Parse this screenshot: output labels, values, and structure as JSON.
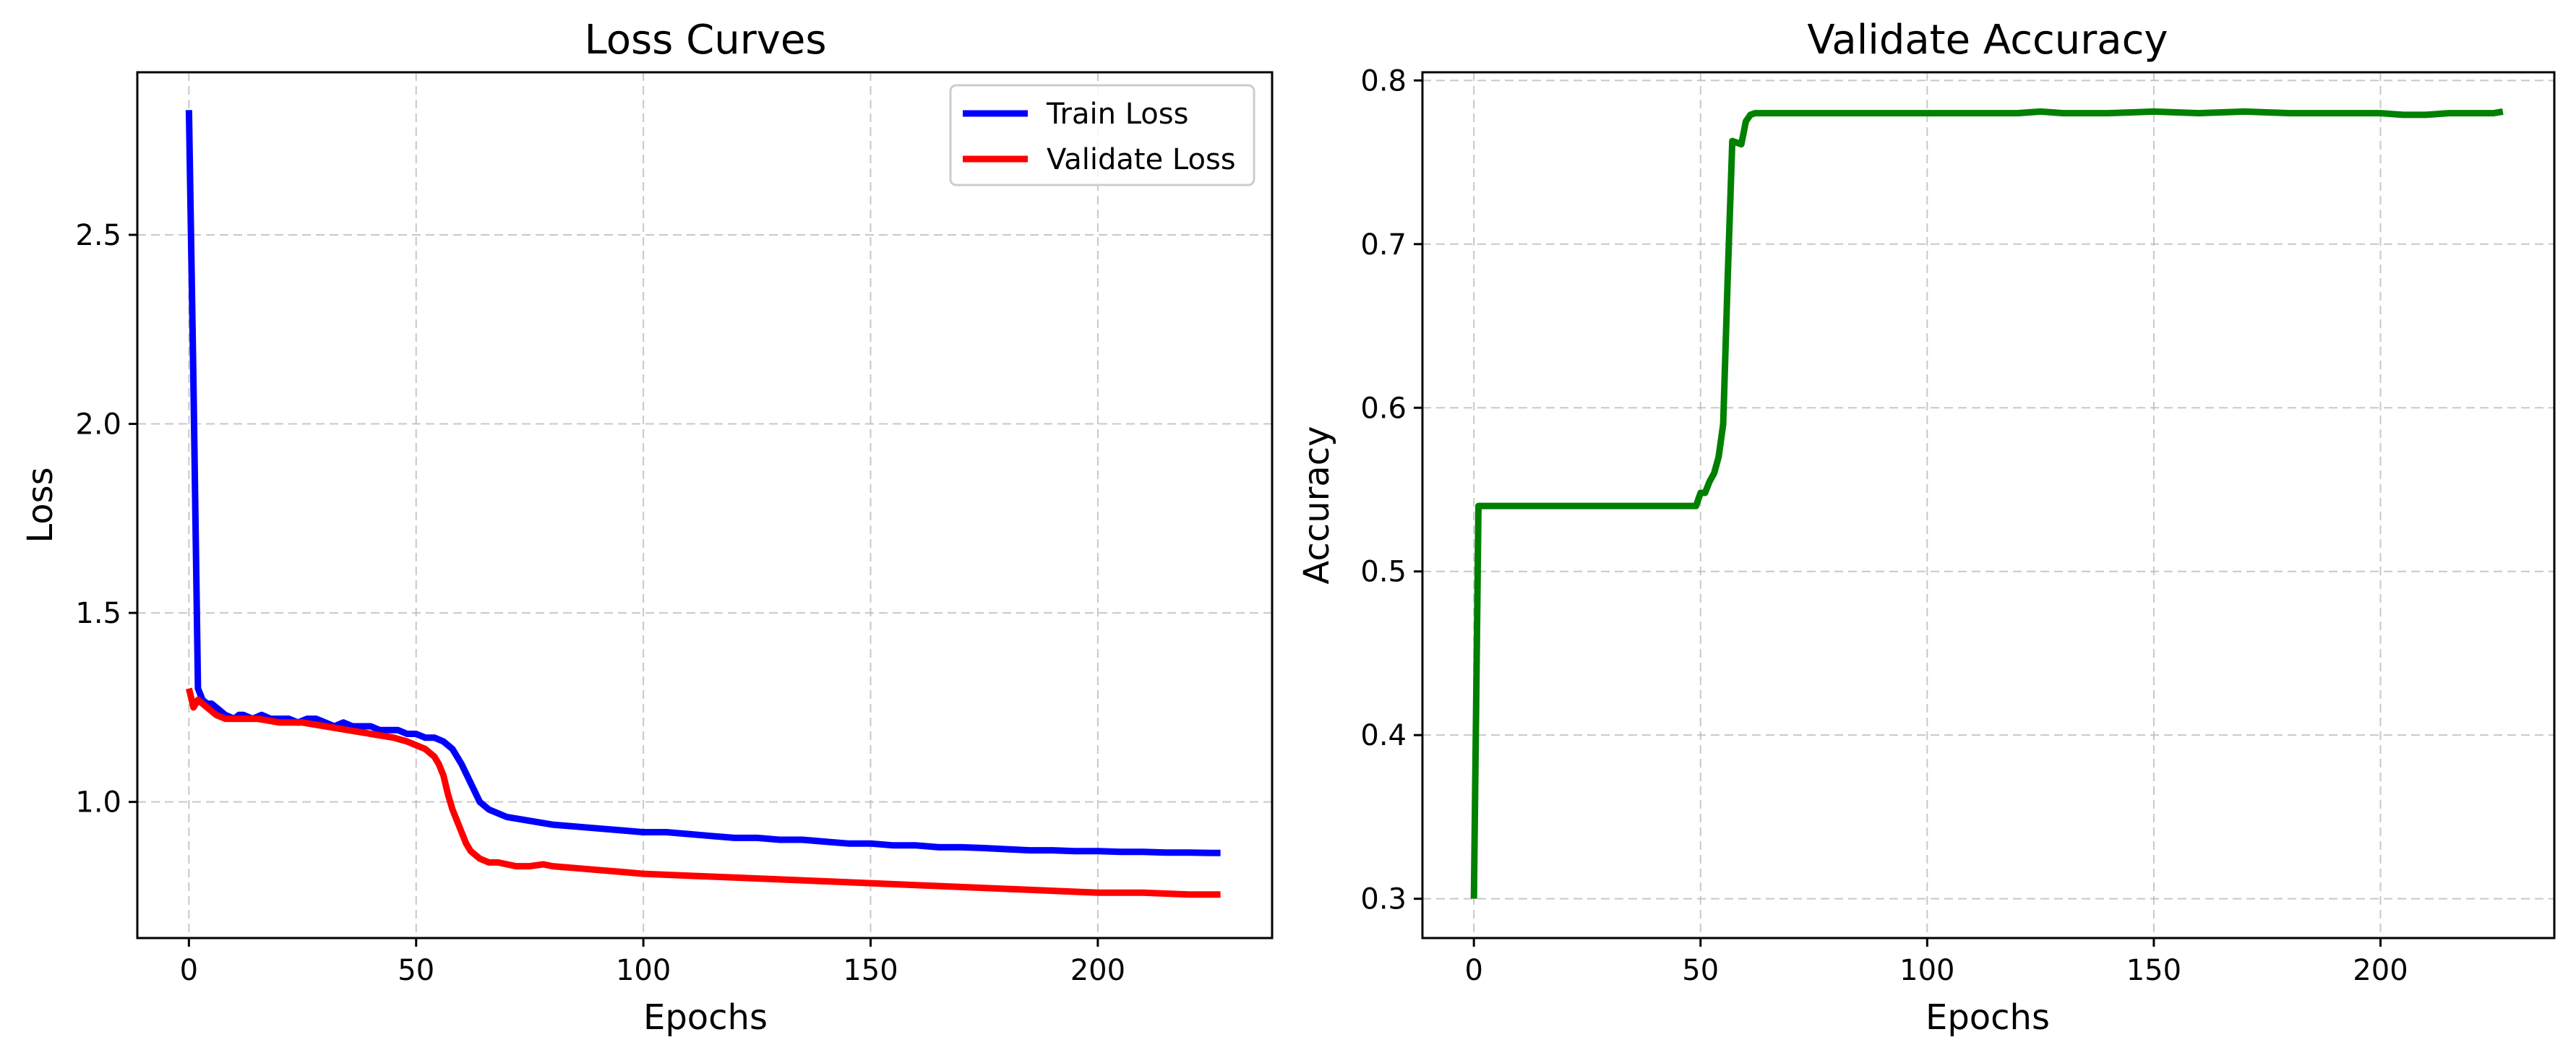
{
  "chart_data": [
    {
      "type": "line",
      "title": "Loss Curves",
      "xlabel": "Epochs",
      "ylabel": "Loss",
      "xlim": [
        -11.35,
        238.35
      ],
      "ylim": [
        0.64,
        2.93
      ],
      "xticks": [
        0,
        50,
        100,
        150,
        200
      ],
      "yticks": [
        1.0,
        1.5,
        2.0,
        2.5
      ],
      "xtick_labels": [
        "0",
        "50",
        "100",
        "150",
        "200"
      ],
      "ytick_labels": [
        "1.0",
        "1.5",
        "2.0",
        "2.5"
      ],
      "grid": true,
      "legend_position": "top-right",
      "series": [
        {
          "name": "Train Loss",
          "color": "#0000ff",
          "x": [
            0,
            1,
            2,
            3,
            4,
            5,
            6,
            8,
            10,
            11,
            12,
            14,
            16,
            18,
            20,
            22,
            24,
            26,
            28,
            30,
            32,
            34,
            36,
            38,
            40,
            42,
            44,
            46,
            48,
            50,
            52,
            54,
            56,
            58,
            60,
            62,
            64,
            66,
            68,
            70,
            75,
            80,
            85,
            90,
            95,
            100,
            105,
            110,
            115,
            120,
            125,
            130,
            135,
            140,
            145,
            150,
            155,
            160,
            165,
            170,
            175,
            180,
            185,
            190,
            195,
            200,
            205,
            210,
            215,
            220,
            225,
            227
          ],
          "y": [
            2.83,
            2.1,
            1.3,
            1.27,
            1.26,
            1.26,
            1.25,
            1.23,
            1.22,
            1.23,
            1.23,
            1.22,
            1.23,
            1.22,
            1.22,
            1.22,
            1.21,
            1.22,
            1.22,
            1.21,
            1.2,
            1.21,
            1.2,
            1.2,
            1.2,
            1.19,
            1.19,
            1.19,
            1.18,
            1.18,
            1.17,
            1.17,
            1.16,
            1.14,
            1.1,
            1.05,
            1.0,
            0.98,
            0.97,
            0.96,
            0.95,
            0.94,
            0.935,
            0.93,
            0.925,
            0.92,
            0.92,
            0.915,
            0.91,
            0.905,
            0.905,
            0.9,
            0.9,
            0.895,
            0.89,
            0.89,
            0.885,
            0.885,
            0.88,
            0.88,
            0.878,
            0.875,
            0.872,
            0.872,
            0.87,
            0.87,
            0.868,
            0.868,
            0.866,
            0.866,
            0.865,
            0.865
          ]
        },
        {
          "name": "Validate Loss",
          "color": "#ff0000",
          "x": [
            0,
            1,
            2,
            3,
            4,
            6,
            8,
            10,
            15,
            20,
            25,
            30,
            35,
            40,
            45,
            48,
            50,
            52,
            54,
            55,
            56,
            57,
            58,
            59,
            60,
            61,
            62,
            63,
            64,
            65,
            66,
            68,
            70,
            72,
            75,
            78,
            80,
            85,
            90,
            95,
            100,
            110,
            120,
            130,
            140,
            150,
            160,
            170,
            180,
            190,
            200,
            210,
            220,
            227
          ],
          "y": [
            1.3,
            1.25,
            1.27,
            1.26,
            1.25,
            1.23,
            1.22,
            1.22,
            1.22,
            1.21,
            1.21,
            1.2,
            1.19,
            1.18,
            1.17,
            1.16,
            1.15,
            1.14,
            1.12,
            1.1,
            1.07,
            1.02,
            0.98,
            0.95,
            0.92,
            0.89,
            0.87,
            0.86,
            0.85,
            0.845,
            0.84,
            0.84,
            0.835,
            0.83,
            0.83,
            0.835,
            0.83,
            0.825,
            0.82,
            0.815,
            0.81,
            0.805,
            0.8,
            0.795,
            0.79,
            0.785,
            0.78,
            0.775,
            0.77,
            0.765,
            0.76,
            0.76,
            0.755,
            0.755
          ]
        }
      ]
    },
    {
      "type": "line",
      "title": "Validate Accuracy",
      "xlabel": "Epochs",
      "ylabel": "Accuracy",
      "xlim": [
        -11.35,
        238.35
      ],
      "ylim": [
        0.276,
        0.805
      ],
      "xticks": [
        0,
        50,
        100,
        150,
        200
      ],
      "yticks": [
        0.3,
        0.4,
        0.5,
        0.6,
        0.7,
        0.8
      ],
      "xtick_labels": [
        "0",
        "50",
        "100",
        "150",
        "200"
      ],
      "ytick_labels": [
        "0.3",
        "0.4",
        "0.5",
        "0.6",
        "0.7",
        "0.8"
      ],
      "grid": true,
      "series": [
        {
          "color": "#008000",
          "x": [
            0,
            1,
            2,
            5,
            10,
            20,
            30,
            40,
            48,
            49,
            50,
            51,
            52,
            53,
            54,
            55,
            56,
            57,
            58,
            59,
            60,
            61,
            62,
            63,
            65,
            70,
            80,
            90,
            100,
            110,
            120,
            125,
            130,
            140,
            150,
            160,
            170,
            180,
            190,
            200,
            205,
            210,
            215,
            220,
            225,
            227
          ],
          "y": [
            0.3,
            0.54,
            0.54,
            0.54,
            0.54,
            0.54,
            0.54,
            0.54,
            0.54,
            0.54,
            0.548,
            0.548,
            0.555,
            0.56,
            0.57,
            0.59,
            0.68,
            0.763,
            0.762,
            0.761,
            0.775,
            0.779,
            0.78,
            0.78,
            0.78,
            0.78,
            0.78,
            0.78,
            0.78,
            0.78,
            0.78,
            0.781,
            0.78,
            0.78,
            0.781,
            0.78,
            0.781,
            0.78,
            0.78,
            0.78,
            0.779,
            0.779,
            0.78,
            0.78,
            0.78,
            0.781
          ]
        }
      ]
    }
  ]
}
